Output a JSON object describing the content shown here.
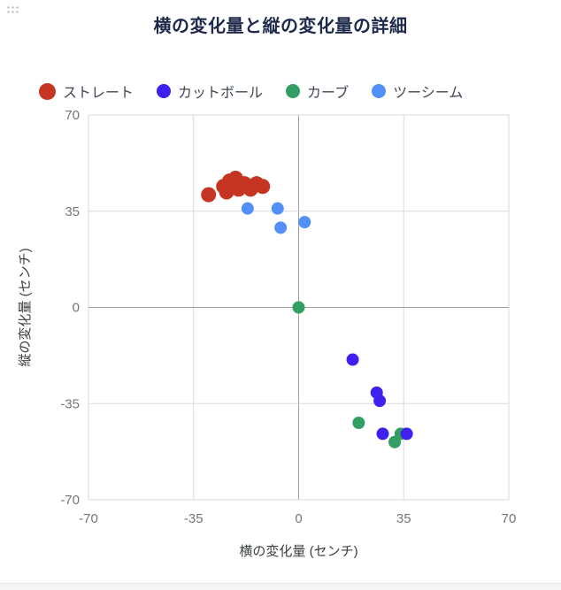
{
  "chart_data": {
    "type": "scatter",
    "title": "横の変化量と縦の変化量の詳細",
    "xlabel": "横の変化量 (センチ)",
    "ylabel": "縦の変化量 (センチ)",
    "xlim": [
      -70,
      70
    ],
    "ylim": [
      -70,
      70
    ],
    "xticks": [
      -70,
      -35,
      0,
      35,
      70
    ],
    "yticks": [
      -70,
      -35,
      0,
      35,
      70
    ],
    "grid": true,
    "legend_position": "top",
    "draw_order": [
      0,
      2,
      1,
      3
    ],
    "series": [
      {
        "name": "ストレート",
        "color": "#c53522",
        "marker_radius": 8.5,
        "points": [
          [
            -30,
            41
          ],
          [
            -25,
            44
          ],
          [
            -24,
            42
          ],
          [
            -23,
            46
          ],
          [
            -22,
            44
          ],
          [
            -21,
            47
          ],
          [
            -20,
            43
          ],
          [
            -18,
            45
          ],
          [
            -16,
            43
          ],
          [
            -14,
            45
          ],
          [
            -12,
            44
          ]
        ]
      },
      {
        "name": "カットボール",
        "color": "#3e21f0",
        "marker_radius": 7,
        "points": [
          [
            18,
            -19
          ],
          [
            26,
            -31
          ],
          [
            27,
            -34
          ],
          [
            28,
            -46
          ],
          [
            36,
            -46
          ]
        ]
      },
      {
        "name": "カーブ",
        "color": "#339e63",
        "marker_radius": 7,
        "points": [
          [
            0,
            0
          ],
          [
            20,
            -42
          ],
          [
            32,
            -49
          ],
          [
            34,
            -46
          ]
        ]
      },
      {
        "name": "ツーシーム",
        "color": "#5290f5",
        "marker_radius": 7,
        "points": [
          [
            -17,
            36
          ],
          [
            -7,
            36
          ],
          [
            -6,
            29
          ],
          [
            2,
            31
          ]
        ]
      }
    ]
  },
  "colors": {
    "title": "#1e2a4a",
    "legend_text": "#3f4753",
    "grid": "#d9d9d9",
    "zero_line": "#9e9e9e",
    "tick_label": "#757575",
    "axis_title": "#3c4043"
  }
}
